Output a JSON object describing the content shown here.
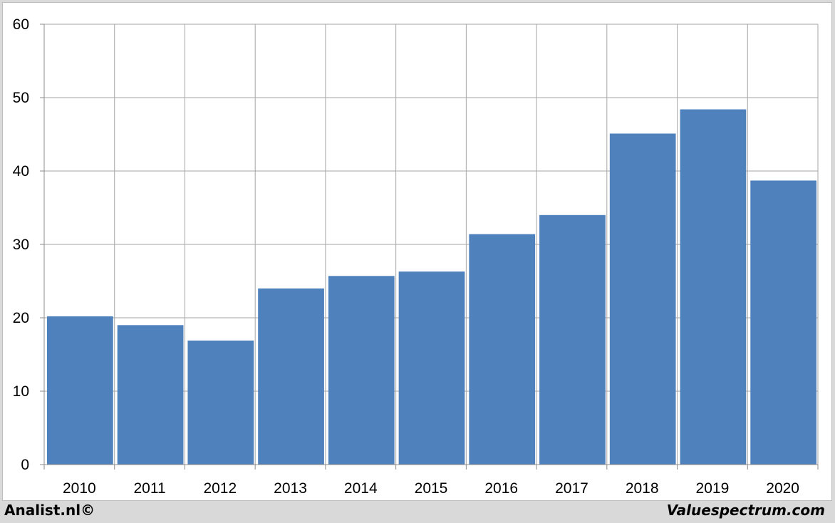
{
  "chart_data": {
    "type": "bar",
    "categories": [
      "2010",
      "2011",
      "2012",
      "2013",
      "2014",
      "2015",
      "2016",
      "2017",
      "2018",
      "2019",
      "2020"
    ],
    "values": [
      20.2,
      19.0,
      16.9,
      24.0,
      25.7,
      26.3,
      31.4,
      34.0,
      45.1,
      48.4,
      38.7
    ],
    "ylim": [
      0,
      60
    ],
    "yticks": [
      0,
      10,
      20,
      30,
      40,
      50,
      60
    ],
    "grid": true,
    "bar_color": "#4f81bd",
    "grid_color": "#a6a6a6",
    "title": "",
    "xlabel": "",
    "ylabel": ""
  },
  "footer": {
    "left": "Analist.nl©",
    "right": "Valuespectrum.com"
  }
}
